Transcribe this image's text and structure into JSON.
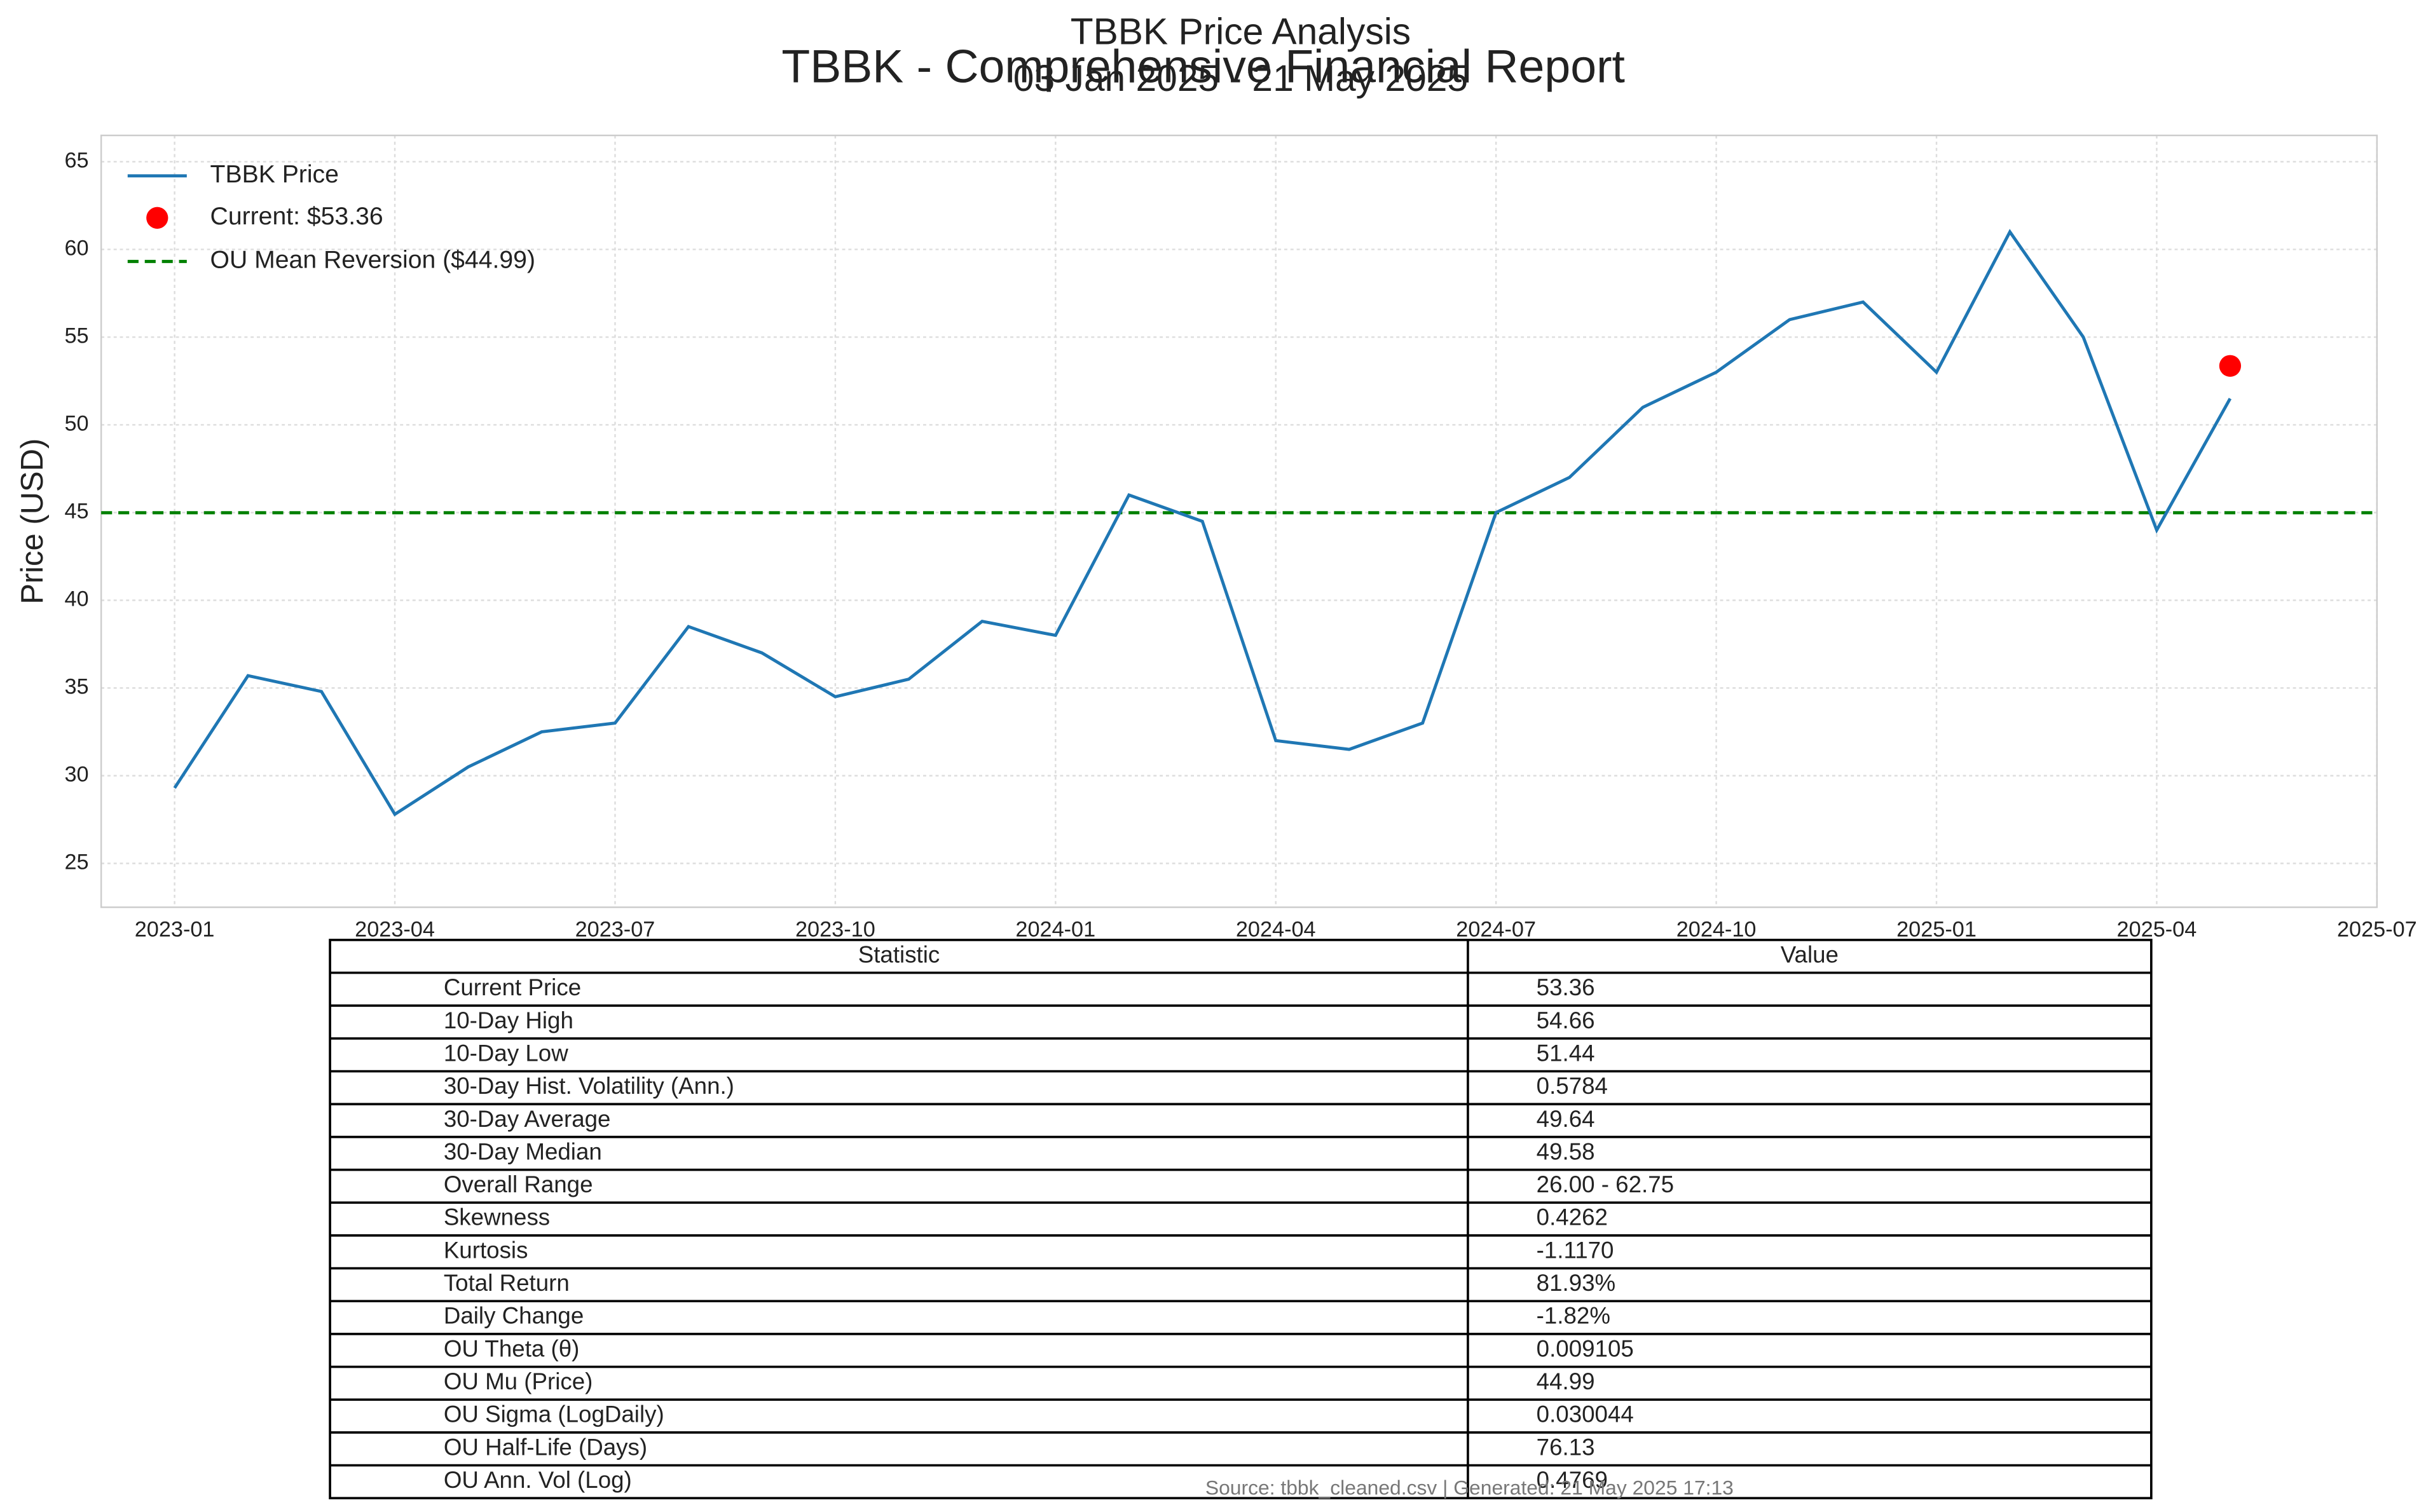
{
  "chart_data": {
    "type": "line",
    "title": "TBBK Price Analysis",
    "subtitle": "03 Jan 2025 - 21 May 2025",
    "suptitle": "TBBK - Comprehensive Financial Report",
    "ylabel": "Price (USD)",
    "x": [
      "2023-01",
      "2023-02",
      "2023-03",
      "2023-04",
      "2023-05",
      "2023-06",
      "2023-07",
      "2023-08",
      "2023-09",
      "2023-10",
      "2023-11",
      "2023-12",
      "2024-01",
      "2024-02",
      "2024-03",
      "2024-04",
      "2024-05",
      "2024-06",
      "2024-07",
      "2024-08",
      "2024-09",
      "2024-10",
      "2024-11",
      "2024-12",
      "2025-01",
      "2025-02",
      "2025-03",
      "2025-04",
      "2025-05"
    ],
    "series": [
      {
        "name": "TBBK Price",
        "color": "#1f77b4",
        "values": [
          29.3,
          35.7,
          34.8,
          27.8,
          30.5,
          32.5,
          33.0,
          38.5,
          37.0,
          34.5,
          35.5,
          38.8,
          38.0,
          46.0,
          44.5,
          32.0,
          31.5,
          33.0,
          45.0,
          47.0,
          51.0,
          53.0,
          56.0,
          57.0,
          53.0,
          61.0,
          55.0,
          44.0,
          51.5
        ]
      }
    ],
    "current": {
      "name": "Current: $53.36",
      "x": "2025-05",
      "value": 53.36,
      "color": "red"
    },
    "reference_line": {
      "name": "OU Mean Reversion ($44.99)",
      "value": 44.99,
      "color": "green"
    },
    "xlim": [
      "2022-12",
      "2025-07"
    ],
    "xticks": [
      "2023-01",
      "2023-04",
      "2023-07",
      "2023-10",
      "2024-01",
      "2024-04",
      "2024-07",
      "2024-10",
      "2025-01",
      "2025-04",
      "2025-07"
    ],
    "ylim": [
      22.5,
      66.5
    ],
    "yticks": [
      25,
      30,
      35,
      40,
      45,
      50,
      55,
      60,
      65
    ],
    "grid": true
  },
  "table": {
    "header": [
      "Statistic",
      "Value"
    ],
    "rows": [
      [
        "Current Price",
        "53.36"
      ],
      [
        "10-Day High",
        "54.66"
      ],
      [
        "10-Day Low",
        "51.44"
      ],
      [
        "30-Day Hist. Volatility (Ann.)",
        "0.5784"
      ],
      [
        "30-Day Average",
        "49.64"
      ],
      [
        "30-Day Median",
        "49.58"
      ],
      [
        "Overall Range",
        "26.00 - 62.75"
      ],
      [
        "Skewness",
        "0.4262"
      ],
      [
        "Kurtosis",
        "-1.1170"
      ],
      [
        "Total Return",
        "81.93%"
      ],
      [
        "Daily Change",
        "-1.82%"
      ],
      [
        "OU Theta (θ)",
        "0.009105"
      ],
      [
        "OU Mu (Price)",
        "44.99"
      ],
      [
        "OU Sigma (LogDaily)",
        "0.030044"
      ],
      [
        "OU Half-Life (Days)",
        "76.13"
      ],
      [
        "OU Ann. Vol (Log)",
        "0.4769"
      ]
    ]
  },
  "footer": "Source: tbbk_cleaned.csv | Generated: 21 May 2025 17:13"
}
